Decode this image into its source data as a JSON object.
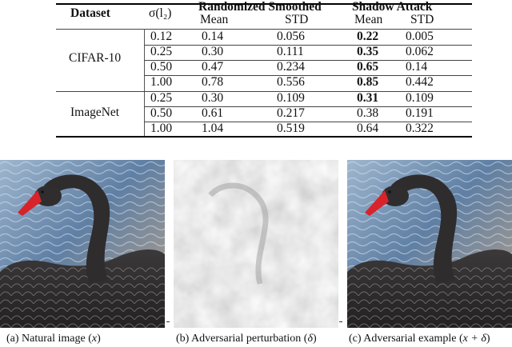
{
  "table": {
    "headers": {
      "dataset": "Dataset",
      "sigma": "σ(l₂)",
      "randomized_smoothed": "Randomized Smoothed",
      "shadow_attack": "Shadow Attack",
      "mean": "Mean",
      "std": "STD"
    },
    "groups": [
      {
        "dataset": "CIFAR-10",
        "rows": [
          {
            "sigma": "0.12",
            "rs_mean": "0.14",
            "rs_std": "0.056",
            "sa_mean": "0.22",
            "sa_std": "0.005",
            "sa_mean_bold": true
          },
          {
            "sigma": "0.25",
            "rs_mean": "0.30",
            "rs_std": "0.111",
            "sa_mean": "0.35",
            "sa_std": "0.062",
            "sa_mean_bold": true
          },
          {
            "sigma": "0.50",
            "rs_mean": "0.47",
            "rs_std": "0.234",
            "sa_mean": "0.65",
            "sa_std": "0.14",
            "sa_mean_bold": true
          },
          {
            "sigma": "1.00",
            "rs_mean": "0.78",
            "rs_std": "0.556",
            "sa_mean": "0.85",
            "sa_std": "0.442",
            "sa_mean_bold": true
          }
        ]
      },
      {
        "dataset": "ImageNet",
        "rows": [
          {
            "sigma": "0.25",
            "rs_mean": "0.30",
            "rs_std": "0.109",
            "sa_mean": "0.31",
            "sa_std": "0.109",
            "sa_mean_bold": true
          },
          {
            "sigma": "0.50",
            "rs_mean": "0.61",
            "rs_std": "0.217",
            "sa_mean": "0.38",
            "sa_std": "0.191",
            "sa_mean_bold": false
          },
          {
            "sigma": "1.00",
            "rs_mean": "1.04",
            "rs_std": "0.519",
            "sa_mean": "0.64",
            "sa_std": "0.322",
            "sa_mean_bold": false
          }
        ]
      }
    ]
  },
  "figures": [
    {
      "id": "natural",
      "caption": "(a) Natural image (",
      "var": "x",
      "tail": ")",
      "icon": "black-swan-photo"
    },
    {
      "id": "perturbation",
      "caption": "(b) Adversarial perturbation (",
      "var": "δ",
      "tail": ")",
      "icon": "gray-noise-image"
    },
    {
      "id": "adversarial",
      "caption": "(c) Adversarial example (",
      "var": "x + δ",
      "tail": ")",
      "icon": "black-swan-photo"
    }
  ],
  "colors": {
    "water": "#6f8fb0",
    "swan": "#2e2b2c",
    "beak": "#d8232a",
    "noise": "#a9a9a9"
  }
}
